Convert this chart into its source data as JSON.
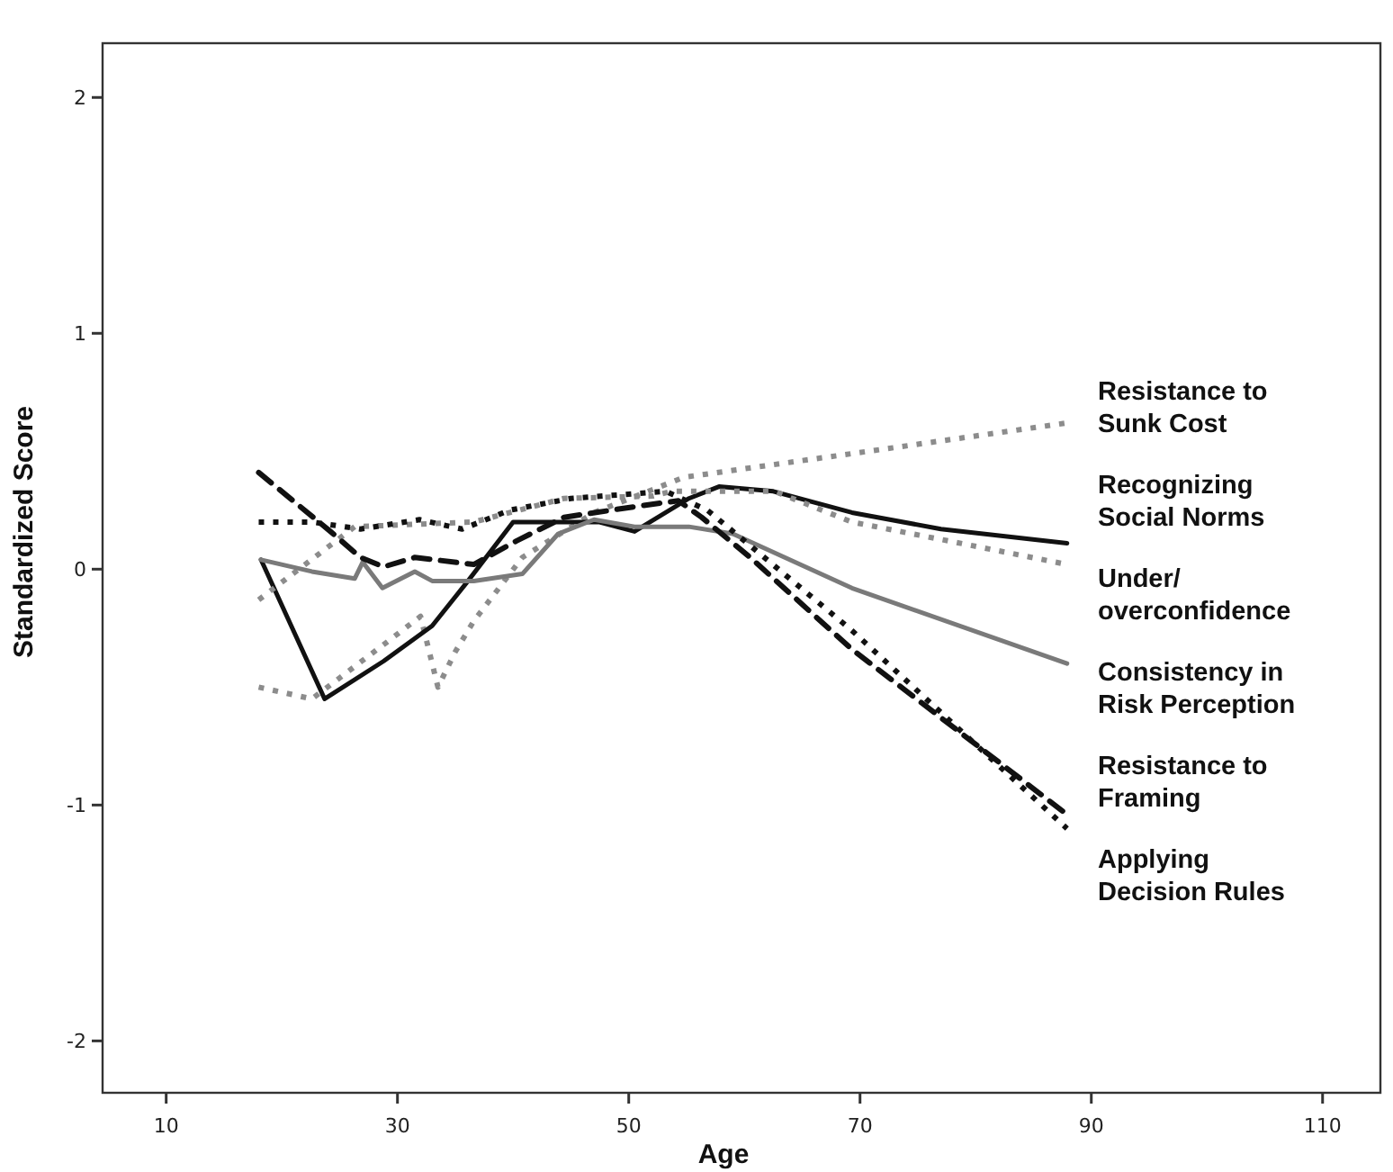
{
  "chart_data": {
    "type": "line",
    "xlabel": "Age",
    "ylabel": "Standardized Score",
    "xlim": [
      4.5,
      115
    ],
    "ylim": [
      -2.22,
      2.23
    ],
    "xticks": [
      10,
      30,
      50,
      70,
      90,
      110
    ],
    "yticks": [
      -2,
      -1,
      0,
      1,
      2
    ],
    "grid": false,
    "legend": false,
    "series": [
      {
        "name": "Resistance to Sunk Cost",
        "color": "#8c8c8c",
        "line_style": "dotted",
        "x": [
          18,
          22.6,
          28.8,
          32,
          33.5,
          35,
          36.6,
          40.8,
          47,
          54.8,
          69.3,
          87.9
        ],
        "values": [
          -0.5,
          -0.55,
          -0.32,
          -0.2,
          -0.5,
          -0.35,
          -0.22,
          0.05,
          0.24,
          0.39,
          0.49,
          0.62
        ]
      },
      {
        "name": "Recognizing Social Norms",
        "color": "#111111",
        "line_style": "solid",
        "x": [
          18.2,
          23.7,
          28.8,
          33,
          36.1,
          40,
          43.9,
          47.4,
          50.5,
          55.2,
          57.8,
          62.5,
          69.3,
          77,
          87.9
        ],
        "values": [
          0.04,
          -0.55,
          -0.39,
          -0.24,
          -0.05,
          0.2,
          0.2,
          0.2,
          0.16,
          0.3,
          0.35,
          0.33,
          0.24,
          0.17,
          0.11
        ]
      },
      {
        "name": "Under/ overconfidence",
        "color": "#8c8c8c",
        "line_style": "dotted",
        "x": [
          18,
          26.3,
          36.6,
          44.4,
          52.1,
          53.7,
          62.6,
          69.3,
          79.7,
          87.9
        ],
        "values": [
          -0.13,
          0.18,
          0.2,
          0.3,
          0.31,
          0.33,
          0.33,
          0.2,
          0.1,
          0.02
        ]
      },
      {
        "name": "Consistency in Risk Perception",
        "color": "#7a7a7a",
        "line_style": "solid",
        "x": [
          18.2,
          22.6,
          26.3,
          27,
          28.7,
          31.5,
          33,
          36.6,
          40.8,
          43.9,
          47,
          50.5,
          55.2,
          59,
          69.3,
          87.9
        ],
        "values": [
          0.04,
          -0.01,
          -0.04,
          0.03,
          -0.08,
          -0.01,
          -0.05,
          -0.05,
          -0.02,
          0.15,
          0.21,
          0.18,
          0.18,
          0.15,
          -0.08,
          -0.4
        ]
      },
      {
        "name": "Resistance to Framing",
        "color": "#111111",
        "line_style": "dashed",
        "x": [
          18,
          24.2,
          26.8,
          28.8,
          31.5,
          36.6,
          40.3,
          44.4,
          51.2,
          54.3,
          56.3,
          60.5,
          69.3,
          87.9
        ],
        "values": [
          0.41,
          0.16,
          0.05,
          0.01,
          0.05,
          0.02,
          0.12,
          0.22,
          0.27,
          0.29,
          0.22,
          0.05,
          -0.34,
          -1.04
        ]
      },
      {
        "name": "Applying Decision Rules",
        "color": "#111111",
        "line_style": "dotted",
        "x": [
          18,
          22.6,
          26.8,
          31.9,
          35.6,
          39.7,
          45,
          53.2,
          56.8,
          60.5,
          69.3,
          87.9
        ],
        "values": [
          0.2,
          0.2,
          0.17,
          0.21,
          0.17,
          0.25,
          0.3,
          0.33,
          0.25,
          0.1,
          -0.26,
          -1.1
        ]
      }
    ]
  }
}
